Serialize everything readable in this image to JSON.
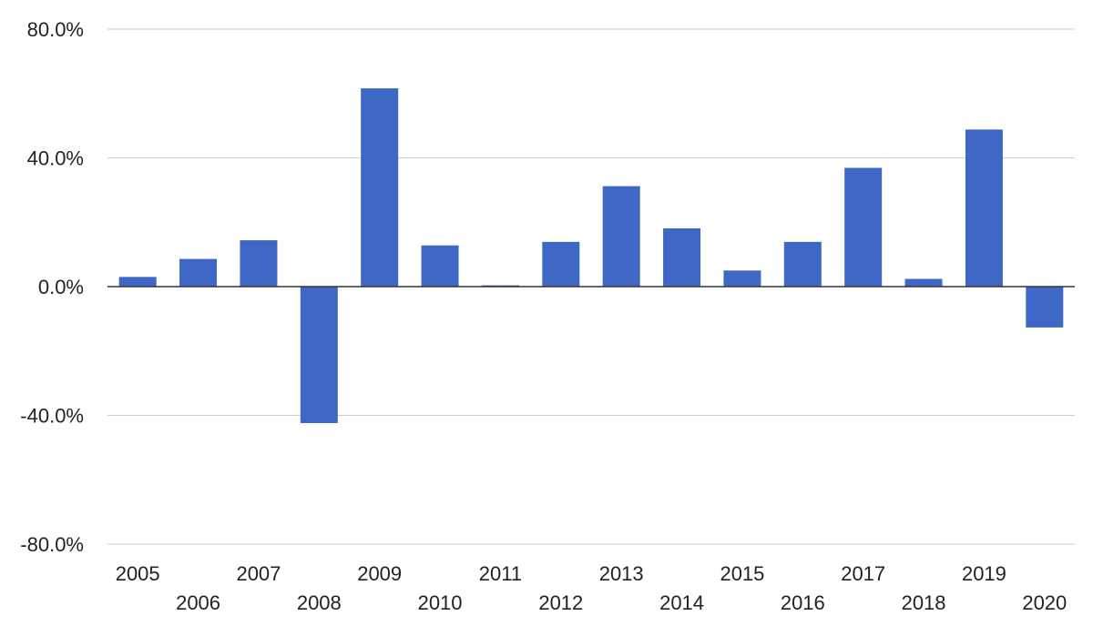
{
  "chart_data": {
    "type": "bar",
    "title": "",
    "xlabel": "",
    "ylabel": "",
    "categories": [
      "2005",
      "2006",
      "2007",
      "2008",
      "2009",
      "2010",
      "2011",
      "2012",
      "2013",
      "2014",
      "2015",
      "2016",
      "2017",
      "2018",
      "2019",
      "2020"
    ],
    "series": [
      {
        "values": [
          3.0,
          8.6,
          14.4,
          -42.4,
          61.6,
          12.8,
          0.4,
          13.9,
          31.2,
          18.1,
          5.0,
          13.9,
          36.9,
          2.4,
          48.8,
          -12.7
        ]
      }
    ],
    "ylim": [
      -80,
      80
    ],
    "yticks": [
      80,
      40,
      0,
      -40,
      -80
    ],
    "ytick_labels": [
      "80.0%",
      "40.0%",
      "0.0%",
      "-40.0%",
      "-80.0%"
    ],
    "grid": true,
    "legend": "none",
    "colors": {
      "bar": "#3f68c6",
      "grid": "#cccccc",
      "baseline": "#333333"
    }
  }
}
